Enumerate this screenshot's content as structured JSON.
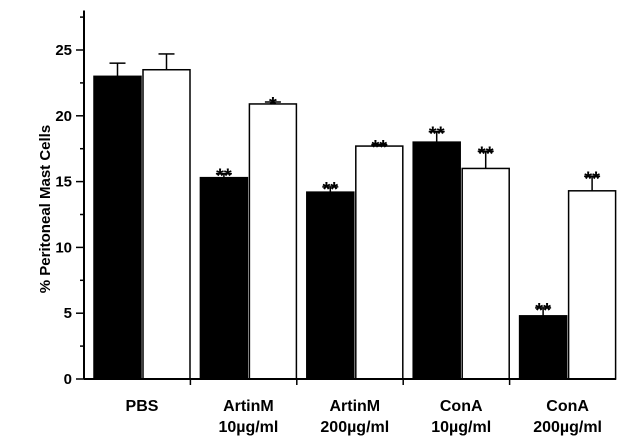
{
  "chart_data": {
    "type": "bar",
    "title": "",
    "xlabel": "",
    "ylabel": "% Peritoneal Mast Cells",
    "ylim": [
      0,
      28
    ],
    "yticks": [
      0,
      5,
      10,
      15,
      20,
      25
    ],
    "grid": false,
    "categories": [
      {
        "line1": "PBS",
        "line2": ""
      },
      {
        "line1": "ArtinM",
        "line2": "10µg/ml"
      },
      {
        "line1": "ArtinM",
        "line2": "200µg/ml"
      },
      {
        "line1": "ConA",
        "line2": "10µg/ml"
      },
      {
        "line1": "ConA",
        "line2": "200µg/ml"
      }
    ],
    "series": [
      {
        "color": "#000000",
        "values": [
          23.0,
          15.3,
          14.2,
          18.0,
          4.8
        ],
        "errors": [
          1.0,
          0.3,
          0.4,
          0.8,
          0.6
        ],
        "significance": [
          "",
          "**",
          "**",
          "**",
          "**"
        ]
      },
      {
        "color": "#ffffff",
        "values": [
          23.5,
          20.9,
          17.7,
          16.0,
          14.3
        ],
        "errors": [
          1.2,
          0.15,
          0.1,
          1.3,
          1.1
        ],
        "significance": [
          "",
          "*",
          "**",
          "**",
          "**"
        ]
      }
    ]
  }
}
